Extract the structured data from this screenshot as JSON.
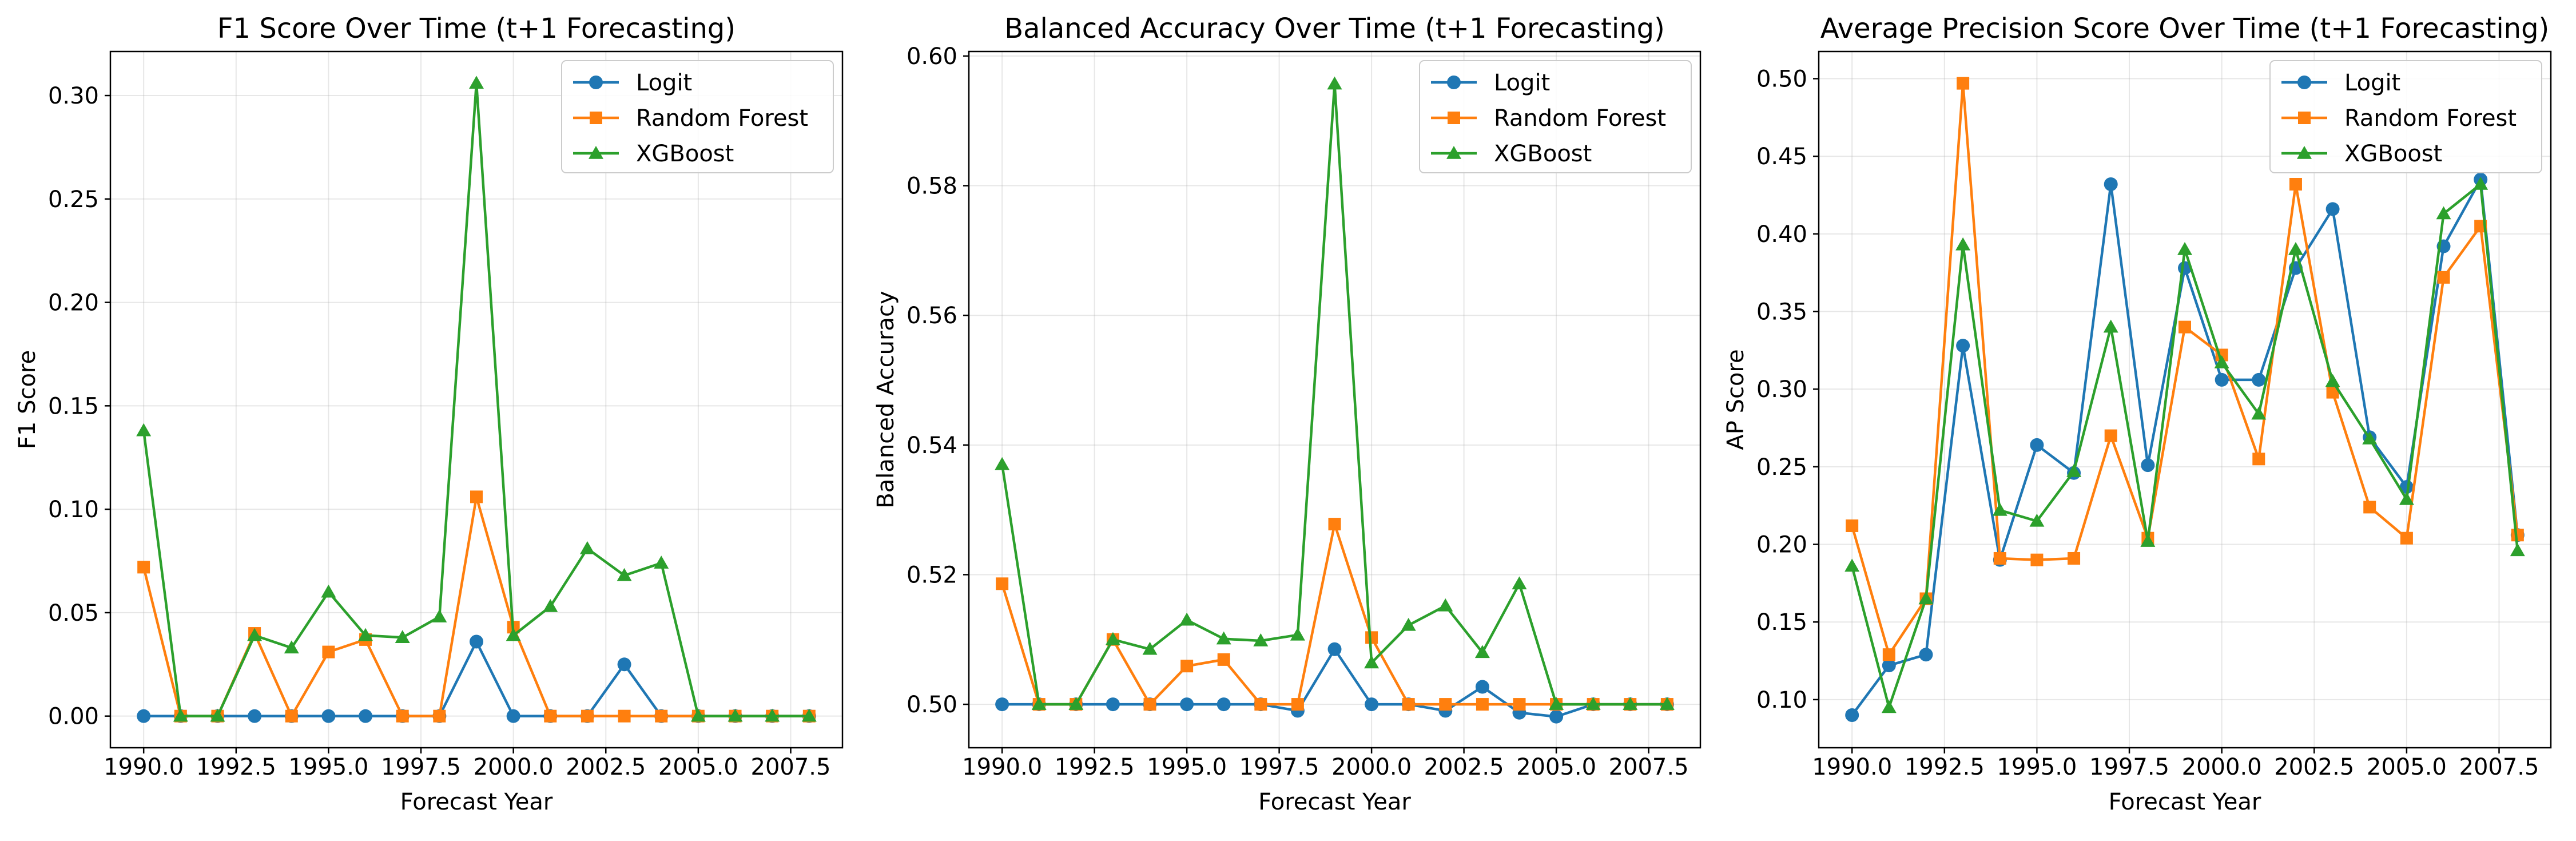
{
  "colors": {
    "logit": "#1f77b4",
    "random_forest": "#ff7f0e",
    "xgboost": "#2ca02c",
    "grid": "#b0b0b0"
  },
  "chart_data": [
    {
      "type": "line",
      "title": "F1 Score Over Time (t+1 Forecasting)",
      "xlabel": "Forecast Year",
      "ylabel": "F1 Score",
      "xlim": [
        1989.1,
        2008.9
      ],
      "ylim": [
        -0.0153,
        0.3213
      ],
      "xticks": [
        1990.0,
        1992.5,
        1995.0,
        1997.5,
        2000.0,
        2002.5,
        2005.0,
        2007.5
      ],
      "xtick_labels": [
        "1990.0",
        "1992.5",
        "1995.0",
        "1997.5",
        "2000.0",
        "2002.5",
        "2005.0",
        "2007.5"
      ],
      "yticks": [
        0.0,
        0.05,
        0.1,
        0.15,
        0.2,
        0.25,
        0.3
      ],
      "ytick_labels": [
        "0.00",
        "0.05",
        "0.10",
        "0.15",
        "0.20",
        "0.25",
        "0.30"
      ],
      "grid": true,
      "legend": "top-right",
      "x": [
        1990,
        1991,
        1992,
        1993,
        1994,
        1995,
        1996,
        1997,
        1998,
        1999,
        2000,
        2001,
        2002,
        2003,
        2004,
        2005,
        2006,
        2007,
        2008
      ],
      "series": [
        {
          "name": "Logit",
          "marker": "circle",
          "color": "#1f77b4",
          "values": [
            0.0,
            0.0,
            0.0,
            0.0,
            0.0,
            0.0,
            0.0,
            0.0,
            0.0,
            0.036,
            0.0,
            0.0,
            0.0,
            0.025,
            0.0,
            0.0,
            0.0,
            0.0,
            0.0
          ]
        },
        {
          "name": "Random Forest",
          "marker": "square",
          "color": "#ff7f0e",
          "values": [
            0.072,
            0.0,
            0.0,
            0.04,
            0.0,
            0.031,
            0.037,
            0.0,
            0.0,
            0.106,
            0.043,
            0.0,
            0.0,
            0.0,
            0.0,
            0.0,
            0.0,
            0.0,
            0.0
          ]
        },
        {
          "name": "XGBoost",
          "marker": "triangle",
          "color": "#2ca02c",
          "values": [
            0.138,
            0.0,
            0.0,
            0.039,
            0.033,
            0.06,
            0.039,
            0.038,
            0.048,
            0.306,
            0.039,
            0.053,
            0.081,
            0.068,
            0.074,
            0.0,
            0.0,
            0.0,
            0.0
          ]
        }
      ]
    },
    {
      "type": "line",
      "title": "Balanced Accuracy Over Time (t+1 Forecasting)",
      "xlabel": "Forecast Year",
      "ylabel": "Balanced Accuracy",
      "xlim": [
        1989.1,
        2008.9
      ],
      "ylim": [
        0.4933,
        0.6007
      ],
      "xticks": [
        1990.0,
        1992.5,
        1995.0,
        1997.5,
        2000.0,
        2002.5,
        2005.0,
        2007.5
      ],
      "xtick_labels": [
        "1990.0",
        "1992.5",
        "1995.0",
        "1997.5",
        "2000.0",
        "2002.5",
        "2005.0",
        "2007.5"
      ],
      "yticks": [
        0.5,
        0.52,
        0.54,
        0.56,
        0.58,
        0.6
      ],
      "ytick_labels": [
        "0.50",
        "0.52",
        "0.54",
        "0.56",
        "0.58",
        "0.60"
      ],
      "grid": true,
      "legend": "top-right",
      "x": [
        1990,
        1991,
        1992,
        1993,
        1994,
        1995,
        1996,
        1997,
        1998,
        1999,
        2000,
        2001,
        2002,
        2003,
        2004,
        2005,
        2006,
        2007,
        2008
      ],
      "series": [
        {
          "name": "Logit",
          "marker": "circle",
          "color": "#1f77b4",
          "values": [
            0.5,
            0.5,
            0.5,
            0.5,
            0.5,
            0.5,
            0.5,
            0.5,
            0.499,
            0.5085,
            0.5,
            0.5,
            0.499,
            0.5027,
            0.4987,
            0.4981,
            0.5,
            0.5,
            0.5
          ]
        },
        {
          "name": "Random Forest",
          "marker": "square",
          "color": "#ff7f0e",
          "values": [
            0.5186,
            0.5,
            0.5,
            0.51,
            0.5,
            0.5059,
            0.5069,
            0.5,
            0.5,
            0.5278,
            0.5103,
            0.5,
            0.5,
            0.5,
            0.5,
            0.5,
            0.5,
            0.5,
            0.5
          ]
        },
        {
          "name": "XGBoost",
          "marker": "triangle",
          "color": "#2ca02c",
          "values": [
            0.537,
            0.5,
            0.5,
            0.51,
            0.5085,
            0.513,
            0.5101,
            0.5098,
            0.5107,
            0.5957,
            0.5064,
            0.5122,
            0.5152,
            0.508,
            0.5186,
            0.5,
            0.5,
            0.5,
            0.5
          ]
        }
      ]
    },
    {
      "type": "line",
      "title": "Average Precision Score Over Time (t+1 Forecasting)",
      "xlabel": "Forecast Year",
      "ylabel": "AP Score",
      "xlim": [
        1989.1,
        2008.9
      ],
      "ylim": [
        0.069,
        0.5175
      ],
      "xticks": [
        1990.0,
        1992.5,
        1995.0,
        1997.5,
        2000.0,
        2002.5,
        2005.0,
        2007.5
      ],
      "xtick_labels": [
        "1990.0",
        "1992.5",
        "1995.0",
        "1997.5",
        "2000.0",
        "2002.5",
        "2005.0",
        "2007.5"
      ],
      "yticks": [
        0.1,
        0.15,
        0.2,
        0.25,
        0.3,
        0.35,
        0.4,
        0.45,
        0.5
      ],
      "ytick_labels": [
        "0.10",
        "0.15",
        "0.20",
        "0.25",
        "0.30",
        "0.35",
        "0.40",
        "0.45",
        "0.50"
      ],
      "grid": true,
      "legend": "top-right",
      "x": [
        1990,
        1991,
        1992,
        1993,
        1994,
        1995,
        1996,
        1997,
        1998,
        1999,
        2000,
        2001,
        2002,
        2003,
        2004,
        2005,
        2006,
        2007,
        2008
      ],
      "series": [
        {
          "name": "Logit",
          "marker": "circle",
          "color": "#1f77b4",
          "values": [
            0.09,
            0.122,
            0.129,
            0.328,
            0.19,
            0.264,
            0.246,
            0.432,
            0.251,
            0.378,
            0.306,
            0.306,
            0.378,
            0.416,
            0.269,
            0.237,
            0.392,
            0.435,
            0.206
          ]
        },
        {
          "name": "Random Forest",
          "marker": "square",
          "color": "#ff7f0e",
          "values": [
            0.212,
            0.129,
            0.165,
            0.497,
            0.191,
            0.19,
            0.191,
            0.27,
            0.204,
            0.34,
            0.322,
            0.255,
            0.432,
            0.298,
            0.224,
            0.204,
            0.372,
            0.405,
            0.206
          ]
        },
        {
          "name": "XGBoost",
          "marker": "triangle",
          "color": "#2ca02c",
          "values": [
            0.186,
            0.095,
            0.165,
            0.393,
            0.222,
            0.215,
            0.247,
            0.34,
            0.202,
            0.39,
            0.317,
            0.284,
            0.39,
            0.305,
            0.268,
            0.229,
            0.413,
            0.432,
            0.196
          ]
        }
      ]
    }
  ]
}
